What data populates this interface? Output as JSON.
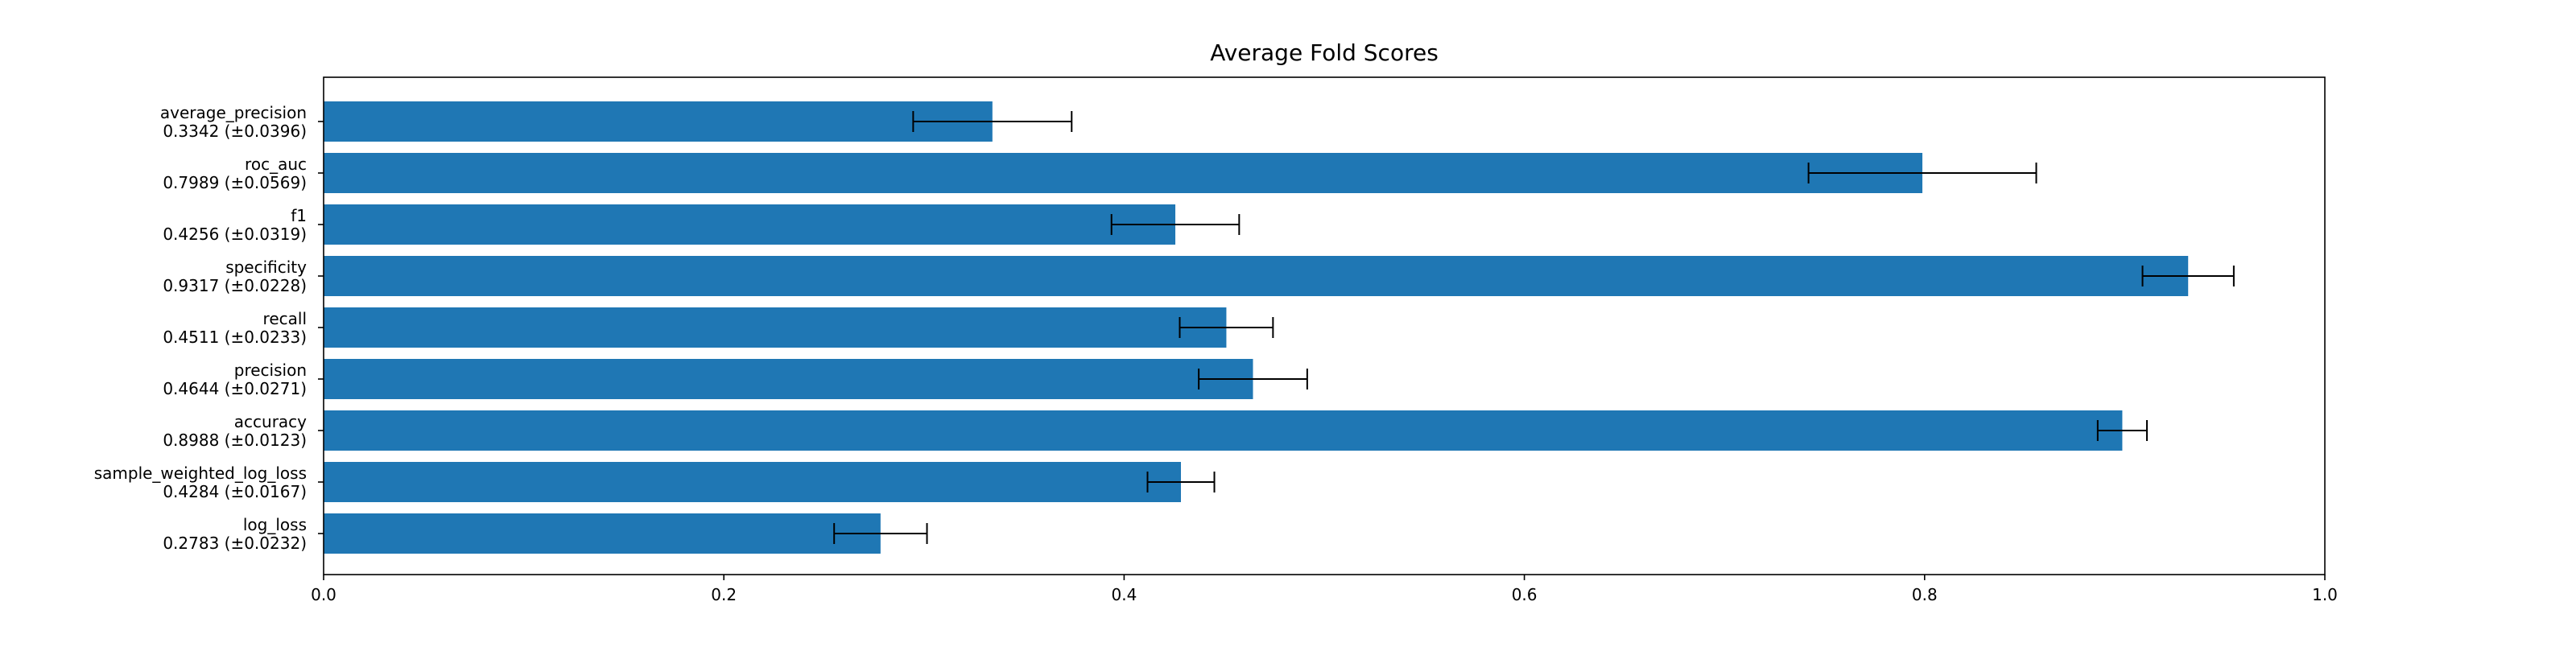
{
  "chart_data": {
    "type": "bar",
    "orientation": "horizontal",
    "title": "Average Fold Scores",
    "xlabel": "",
    "ylabel": "",
    "xlim": [
      0,
      1.0
    ],
    "x_ticks": [
      "0.0",
      "0.2",
      "0.4",
      "0.6",
      "0.8",
      "1.0"
    ],
    "grid": false,
    "legend": "none",
    "colors": {
      "bar": "#1f77b4",
      "error_bar": "#000000",
      "axes": "#000000"
    },
    "categories": [
      "log_loss",
      "sample_weighted_log_loss",
      "accuracy",
      "precision",
      "recall",
      "specificity",
      "f1",
      "roc_auc",
      "average_precision"
    ],
    "value_labels": [
      "0.2783 (±0.0232)",
      "0.4284 (±0.0167)",
      "0.8988 (±0.0123)",
      "0.4644 (±0.0271)",
      "0.4511 (±0.0233)",
      "0.9317 (±0.0228)",
      "0.4256 (±0.0319)",
      "0.7989 (±0.0569)",
      "0.3342 (±0.0396)"
    ],
    "values": [
      0.2783,
      0.4284,
      0.8988,
      0.4644,
      0.4511,
      0.9317,
      0.4256,
      0.7989,
      0.3342
    ],
    "errors": [
      0.0232,
      0.0167,
      0.0123,
      0.0271,
      0.0233,
      0.0228,
      0.0319,
      0.0569,
      0.0396
    ]
  }
}
